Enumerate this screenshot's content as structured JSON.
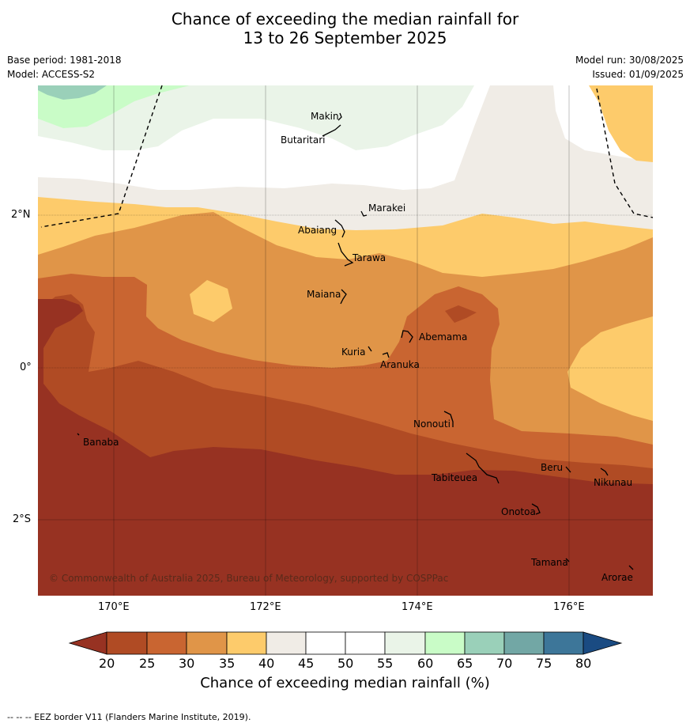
{
  "title_line1": "Chance of exceeding the median rainfall for",
  "title_line2": "13 to 26 September 2025",
  "base_period": "Base period: 1981-2018",
  "model": "Model: ACCESS-S2",
  "model_run": "Model run: 30/08/2025",
  "issued": "Issued: 01/09/2025",
  "copyright": "© Commonwealth of Australia 2025, Bureau of Meteorology, supported by COSPPac",
  "lat_labels": [
    "2°N",
    "0°",
    "2°S"
  ],
  "lon_labels": [
    "170°E",
    "172°E",
    "174°E",
    "176°E"
  ],
  "islands": [
    "Makin",
    "Butaritari",
    "Marakei",
    "Abaiang",
    "Tarawa",
    "Maiana",
    "Abemama",
    "Kuria",
    "Aranuka",
    "Nonouti",
    "Banaba",
    "Beru",
    "Nikunau",
    "Tabiteuea",
    "Onotoa",
    "Tamana",
    "Arorae"
  ],
  "colorbar": {
    "ticks": [
      "20",
      "25",
      "30",
      "35",
      "40",
      "45",
      "50",
      "55",
      "60",
      "65",
      "70",
      "75",
      "80"
    ],
    "colors": [
      "#b04b24",
      "#c96531",
      "#e09548",
      "#fdcb6b",
      "#f0ece6",
      "#ffffff",
      "#ffffff",
      "#eaf4e8",
      "#c9fcc7",
      "#9ad0b9",
      "#72a7a5",
      "#3d7699"
    ],
    "low_color": "#973222",
    "high_color": "#1a4b82",
    "label": "Chance of exceeding median rainfall (%)"
  },
  "footer": "--  --  -- EEZ border V11 (Flanders Marine Institute, 2019)."
}
